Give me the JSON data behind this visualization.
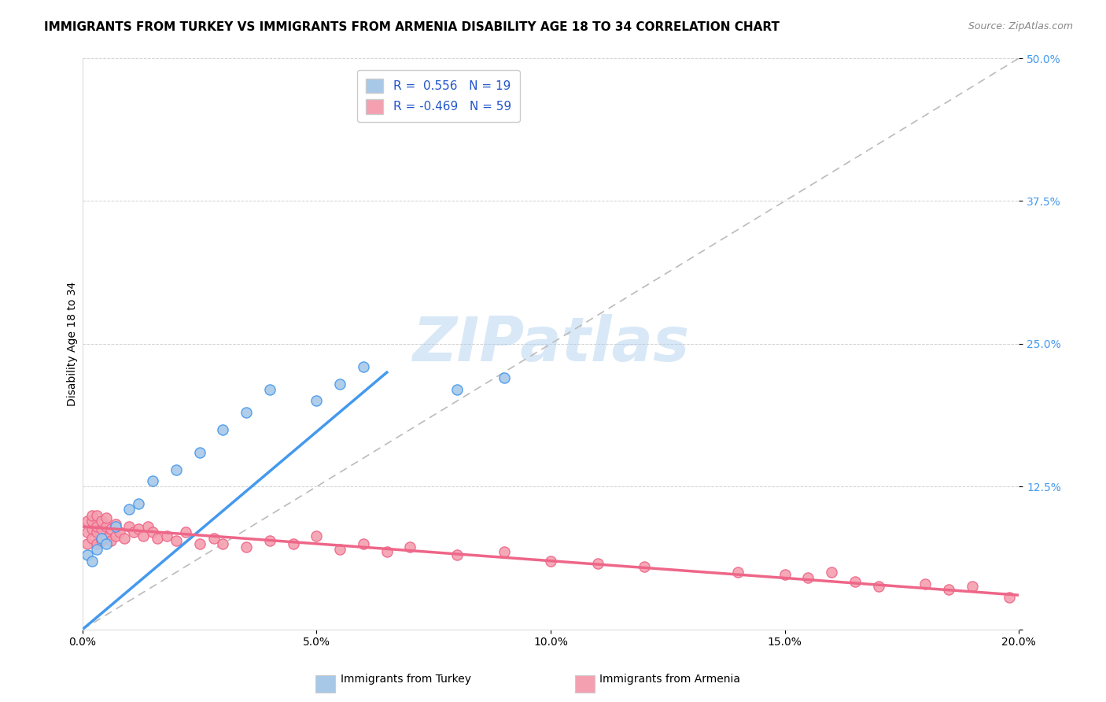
{
  "title": "IMMIGRANTS FROM TURKEY VS IMMIGRANTS FROM ARMENIA DISABILITY AGE 18 TO 34 CORRELATION CHART",
  "source": "Source: ZipAtlas.com",
  "ylabel": "Disability Age 18 to 34",
  "xlim": [
    0.0,
    0.2
  ],
  "ylim": [
    0.0,
    0.5
  ],
  "xticks": [
    0.0,
    0.05,
    0.1,
    0.15,
    0.2
  ],
  "xticklabels": [
    "0.0%",
    "5.0%",
    "10.0%",
    "15.0%",
    "20.0%"
  ],
  "yticks": [
    0.0,
    0.125,
    0.25,
    0.375,
    0.5
  ],
  "yticklabels": [
    "",
    "12.5%",
    "25.0%",
    "37.5%",
    "50.0%"
  ],
  "turkey_R": 0.556,
  "turkey_N": 19,
  "armenia_R": -0.469,
  "armenia_N": 59,
  "turkey_color": "#a8c8e8",
  "armenia_color": "#f4a0b0",
  "turkey_line_color": "#4499ee",
  "armenia_line_color": "#ee6688",
  "ref_line_color": "#bbbbbb",
  "watermark": "ZIPatlas",
  "watermark_color": "#aaccee",
  "background_color": "#ffffff",
  "title_fontsize": 11,
  "axis_label_fontsize": 10,
  "tick_fontsize": 10,
  "legend_fontsize": 11,
  "turkey_x": [
    0.001,
    0.002,
    0.003,
    0.004,
    0.005,
    0.007,
    0.01,
    0.012,
    0.015,
    0.02,
    0.025,
    0.03,
    0.035,
    0.04,
    0.05,
    0.055,
    0.06,
    0.08,
    0.09
  ],
  "turkey_y": [
    0.065,
    0.06,
    0.07,
    0.08,
    0.075,
    0.09,
    0.105,
    0.11,
    0.13,
    0.14,
    0.155,
    0.175,
    0.19,
    0.21,
    0.2,
    0.215,
    0.23,
    0.21,
    0.22
  ],
  "armenia_x": [
    0.001,
    0.001,
    0.001,
    0.002,
    0.002,
    0.002,
    0.002,
    0.003,
    0.003,
    0.003,
    0.003,
    0.004,
    0.004,
    0.004,
    0.005,
    0.005,
    0.005,
    0.006,
    0.006,
    0.007,
    0.007,
    0.008,
    0.009,
    0.01,
    0.011,
    0.012,
    0.013,
    0.014,
    0.015,
    0.016,
    0.018,
    0.02,
    0.022,
    0.025,
    0.028,
    0.03,
    0.035,
    0.04,
    0.045,
    0.05,
    0.055,
    0.06,
    0.065,
    0.07,
    0.08,
    0.09,
    0.1,
    0.11,
    0.12,
    0.14,
    0.15,
    0.155,
    0.16,
    0.165,
    0.17,
    0.18,
    0.185,
    0.19,
    0.198
  ],
  "armenia_y": [
    0.075,
    0.085,
    0.095,
    0.08,
    0.088,
    0.095,
    0.1,
    0.075,
    0.085,
    0.09,
    0.1,
    0.078,
    0.088,
    0.095,
    0.08,
    0.09,
    0.098,
    0.078,
    0.088,
    0.082,
    0.092,
    0.085,
    0.08,
    0.09,
    0.085,
    0.088,
    0.082,
    0.09,
    0.085,
    0.08,
    0.082,
    0.078,
    0.085,
    0.075,
    0.08,
    0.075,
    0.072,
    0.078,
    0.075,
    0.082,
    0.07,
    0.075,
    0.068,
    0.072,
    0.065,
    0.068,
    0.06,
    0.058,
    0.055,
    0.05,
    0.048,
    0.045,
    0.05,
    0.042,
    0.038,
    0.04,
    0.035,
    0.038,
    0.028
  ],
  "turkey_line_x": [
    0.0,
    0.065
  ],
  "turkey_line_y": [
    0.0,
    0.225
  ],
  "armenia_line_x": [
    0.0,
    0.2
  ],
  "armenia_line_y": [
    0.09,
    0.03
  ]
}
